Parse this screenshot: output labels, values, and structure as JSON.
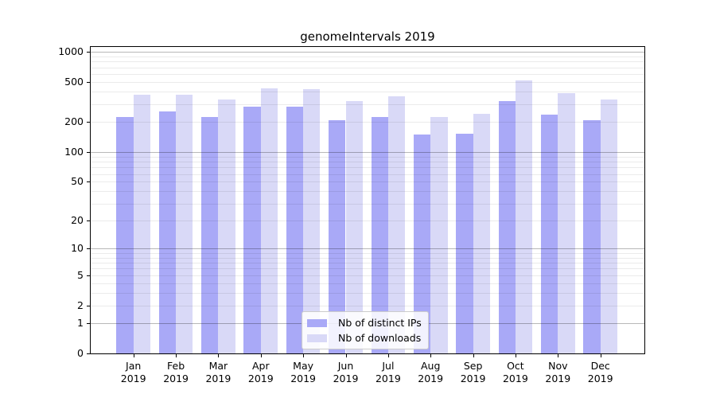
{
  "chart_data": {
    "type": "bar",
    "title": "genomeIntervals 2019",
    "categories": [
      "Jan 2019",
      "Feb 2019",
      "Mar 2019",
      "Apr 2019",
      "May 2019",
      "Jun 2019",
      "Jul 2019",
      "Aug 2019",
      "Sep 2019",
      "Oct 2019",
      "Nov 2019",
      "Dec 2019"
    ],
    "series": [
      {
        "name": "Nb of distinct IPs",
        "color": "#a9a9f7",
        "values": [
          225,
          254,
          225,
          286,
          286,
          209,
          225,
          150,
          153,
          320,
          236,
          209
        ]
      },
      {
        "name": "Nb of downloads",
        "color": "#d9d9f7",
        "values": [
          374,
          374,
          336,
          435,
          423,
          320,
          358,
          225,
          240,
          520,
          390,
          334
        ]
      }
    ],
    "xlabel": "",
    "ylabel": "",
    "y_scale": "log1p",
    "ylim": [
      0,
      1115
    ],
    "y_ticks": [
      {
        "value": 0,
        "label": "0"
      },
      {
        "value": 1,
        "label": "1"
      },
      {
        "value": 2,
        "label": "2"
      },
      {
        "value": 5,
        "label": "5"
      },
      {
        "value": 10,
        "label": "10"
      },
      {
        "value": 20,
        "label": "20"
      },
      {
        "value": 50,
        "label": "50"
      },
      {
        "value": 100,
        "label": "100"
      },
      {
        "value": 200,
        "label": "200"
      },
      {
        "value": 500,
        "label": "500"
      },
      {
        "value": 1000,
        "label": "1000"
      }
    ],
    "grid": {
      "minor_values": [
        2,
        3,
        4,
        5,
        6,
        7,
        8,
        9,
        20,
        30,
        40,
        50,
        60,
        70,
        80,
        90,
        200,
        300,
        400,
        500,
        600,
        700,
        800,
        900
      ],
      "major_values": [
        1,
        10,
        100,
        1000
      ]
    },
    "legend": {
      "position": "lower-center"
    },
    "colors": {
      "background": "#ffffff",
      "spine": "#000000",
      "grid_minor": "#ebebeb",
      "grid_major": "#b8b8b8"
    }
  }
}
